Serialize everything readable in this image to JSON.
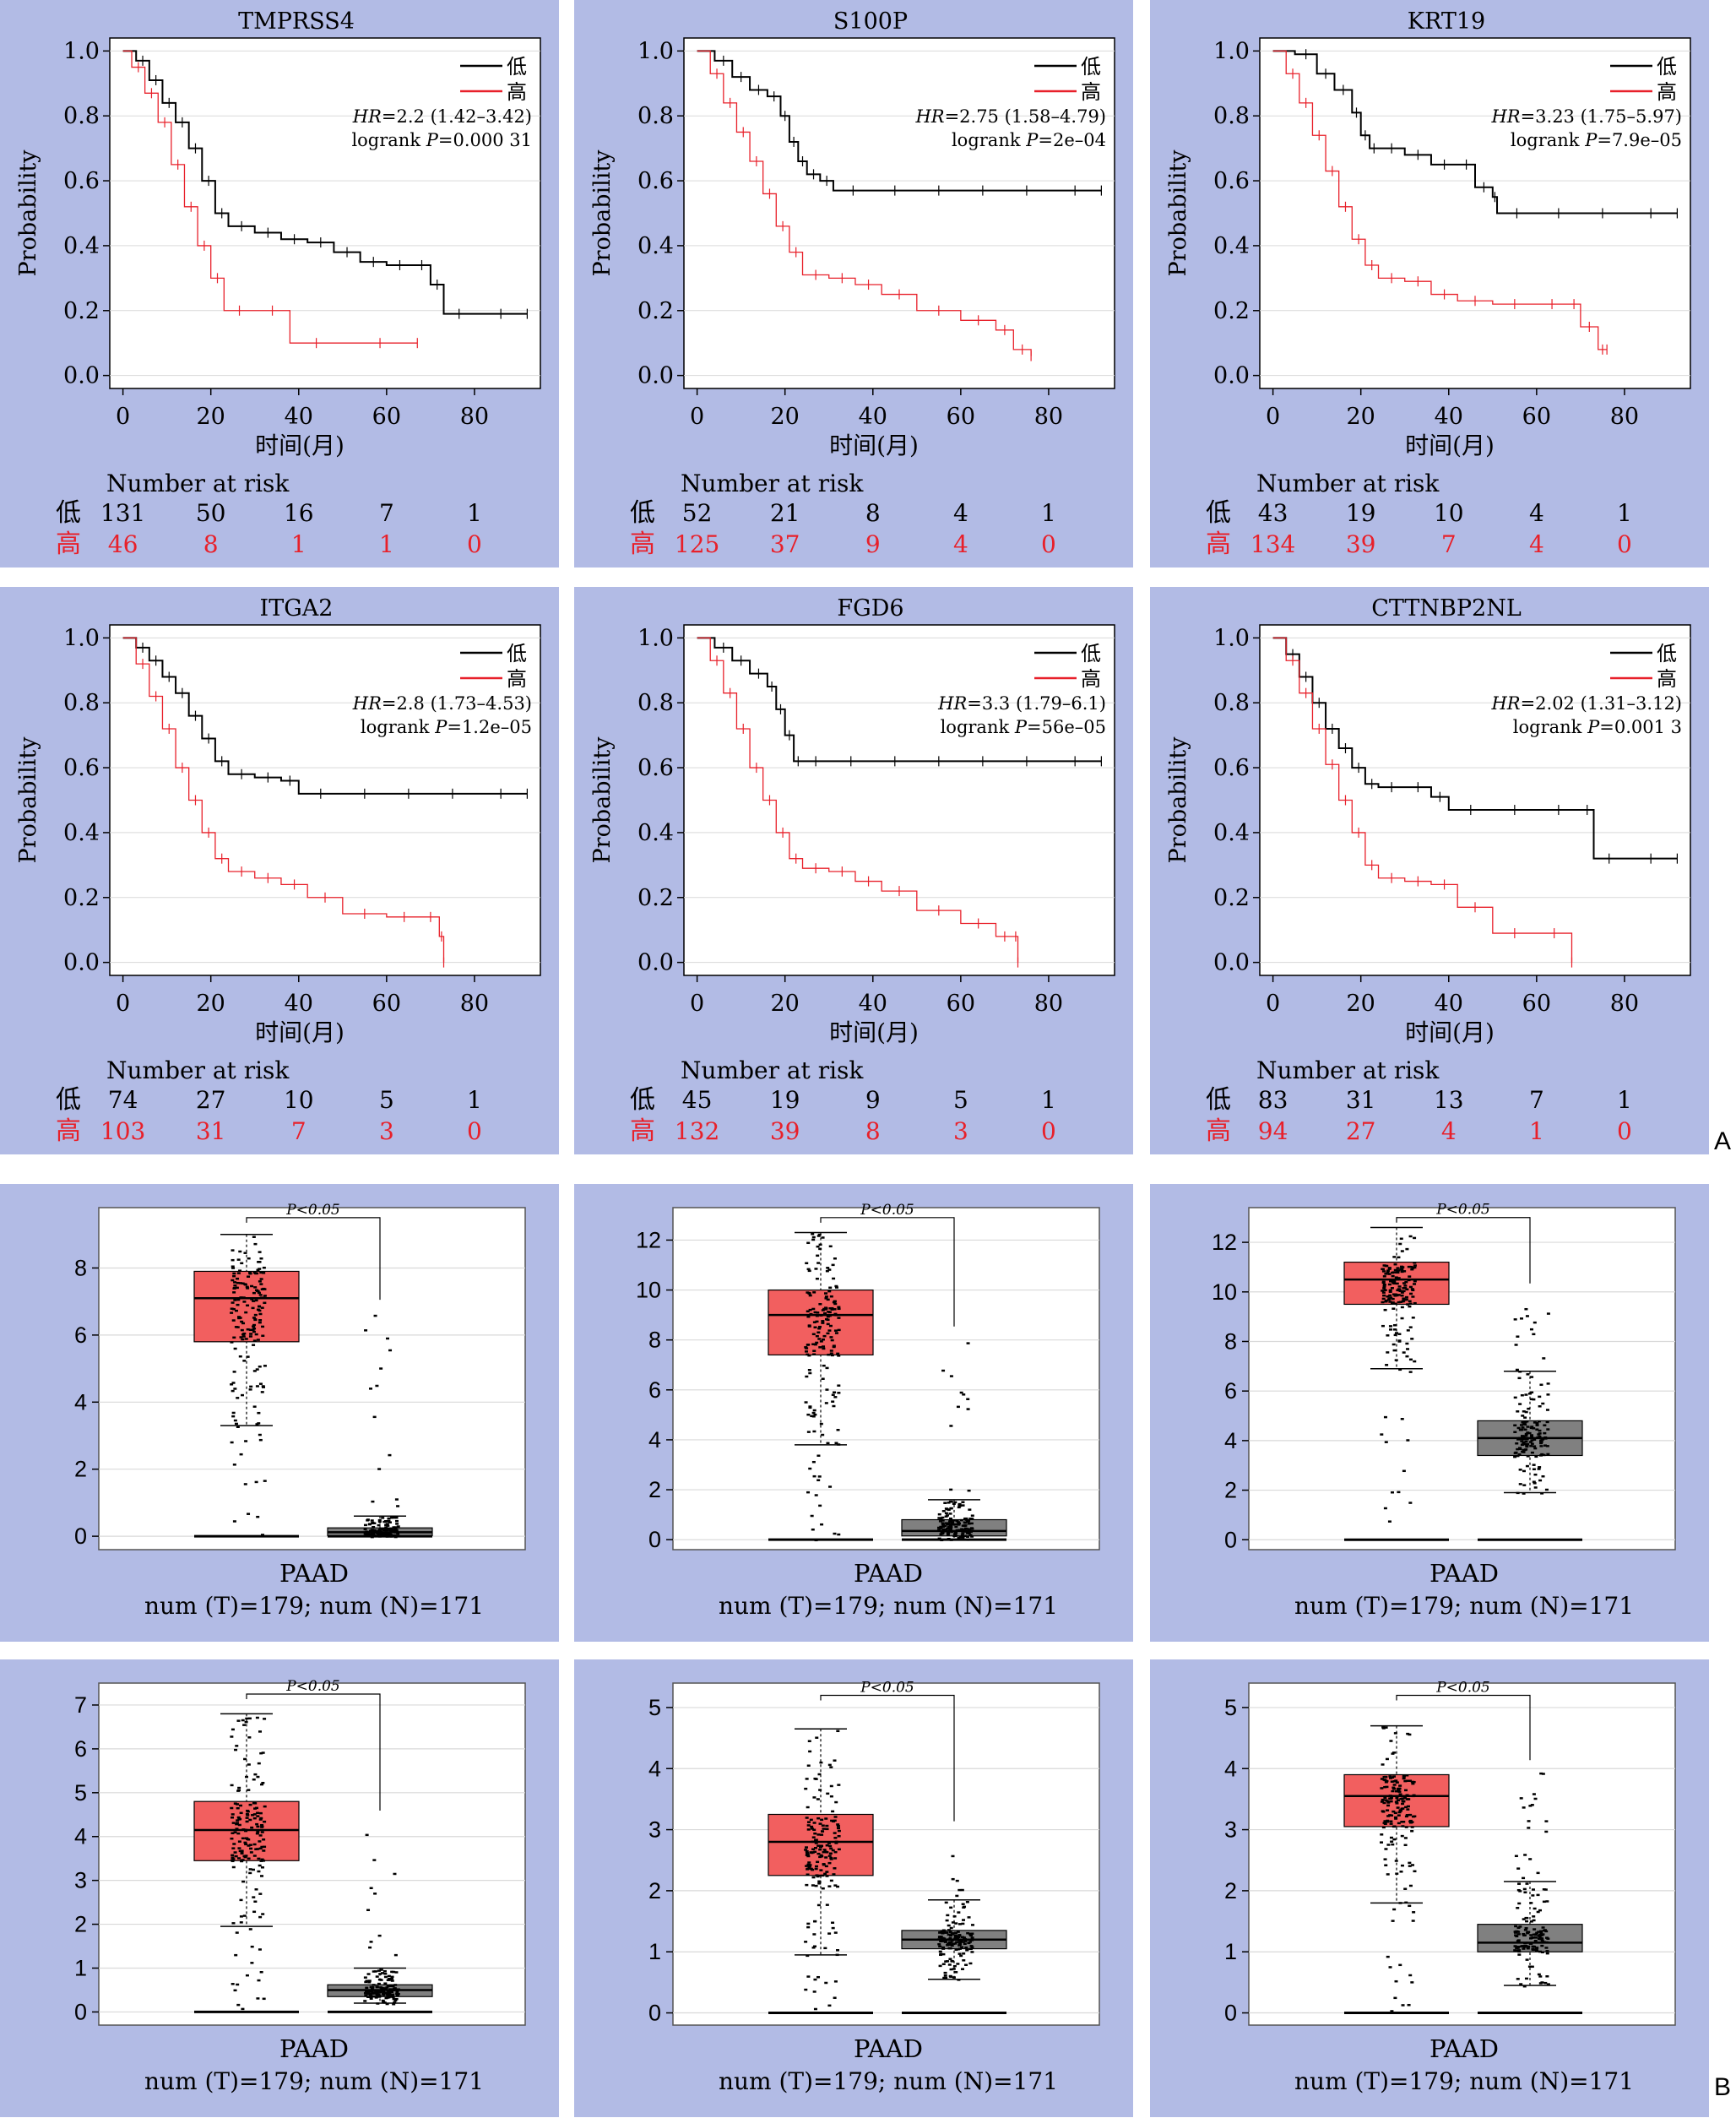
{
  "figure_letters": [
    "A",
    "B"
  ],
  "colors": {
    "panel_bg": "#b2bbe5",
    "low": "#000000",
    "high": "#e8202a",
    "tumor_box": "#f25f5f",
    "normal_box": "#808080",
    "grid": "#d9d9d9"
  },
  "km_common": {
    "ylabel": "Probability",
    "xlabel": "时间(月)",
    "risk_title": "Number at risk",
    "legend_low": "低",
    "legend_high": "高",
    "yticks": [
      "0.0",
      "0.2",
      "0.4",
      "0.6",
      "0.8",
      "1.0"
    ],
    "xticks": [
      "0",
      "20",
      "40",
      "60",
      "80"
    ],
    "hr_prefix": "HR",
    "logrank_prefix": "logrank P"
  },
  "box_common": {
    "xlabel": "PAAD",
    "counts": "num (T)=179; num (N)=171",
    "sig": "P<0.05"
  },
  "chart_data": [
    {
      "type": "line",
      "title": "TMPRSS4",
      "hr": "=2.2 (1.42–3.42)",
      "p": "=0.000 31",
      "xlim": [
        -3,
        95
      ],
      "ylim": [
        -0.04,
        1.04
      ],
      "series": [
        {
          "name": "低",
          "x": [
            0,
            3,
            6,
            9,
            12,
            15,
            18,
            21,
            24,
            30,
            36,
            42,
            48,
            54,
            60,
            66,
            70,
            73,
            80,
            92
          ],
          "y": [
            1.0,
            0.97,
            0.91,
            0.84,
            0.78,
            0.7,
            0.6,
            0.5,
            0.46,
            0.44,
            0.42,
            0.41,
            0.38,
            0.35,
            0.34,
            0.34,
            0.28,
            0.19,
            0.19,
            0.19
          ]
        },
        {
          "name": "高",
          "x": [
            0,
            2,
            5,
            8,
            11,
            14,
            17,
            20,
            23,
            30,
            38,
            50,
            67
          ],
          "y": [
            1.0,
            0.95,
            0.87,
            0.78,
            0.65,
            0.52,
            0.4,
            0.3,
            0.2,
            0.2,
            0.1,
            0.1,
            0.1
          ]
        }
      ],
      "risk_low": [
        "131",
        "50",
        "16",
        "7",
        "1"
      ],
      "risk_high": [
        "46",
        "8",
        "1",
        "1",
        "0"
      ]
    },
    {
      "type": "line",
      "title": "S100P",
      "hr": "=2.75 (1.58–4.79)",
      "p": "=2e–04",
      "xlim": [
        -3,
        95
      ],
      "ylim": [
        -0.04,
        1.04
      ],
      "series": [
        {
          "name": "低",
          "x": [
            0,
            4,
            8,
            12,
            16,
            19,
            21,
            23,
            25,
            28,
            31,
            40,
            50,
            60,
            70,
            80,
            92
          ],
          "y": [
            1.0,
            0.97,
            0.92,
            0.88,
            0.86,
            0.8,
            0.72,
            0.66,
            0.62,
            0.6,
            0.57,
            0.57,
            0.57,
            0.57,
            0.57,
            0.57,
            0.57
          ]
        },
        {
          "name": "高",
          "x": [
            0,
            3,
            6,
            9,
            12,
            15,
            18,
            21,
            24,
            30,
            36,
            42,
            50,
            60,
            68,
            72,
            76
          ],
          "y": [
            1.0,
            0.93,
            0.84,
            0.75,
            0.66,
            0.56,
            0.46,
            0.38,
            0.31,
            0.3,
            0.28,
            0.25,
            0.2,
            0.17,
            0.14,
            0.08,
            0.06
          ]
        }
      ],
      "risk_low": [
        "52",
        "21",
        "8",
        "4",
        "1"
      ],
      "risk_high": [
        "125",
        "37",
        "9",
        "4",
        "0"
      ]
    },
    {
      "type": "line",
      "title": "KRT19",
      "hr": "=3.23 (1.75–5.97)",
      "p": "=7.9e–05",
      "xlim": [
        -3,
        95
      ],
      "ylim": [
        -0.04,
        1.04
      ],
      "series": [
        {
          "name": "低",
          "x": [
            0,
            5,
            10,
            14,
            18,
            20,
            22,
            24,
            30,
            36,
            42,
            46,
            50,
            51,
            60,
            70,
            80,
            92
          ],
          "y": [
            1.0,
            0.99,
            0.93,
            0.88,
            0.81,
            0.74,
            0.7,
            0.7,
            0.68,
            0.65,
            0.65,
            0.58,
            0.55,
            0.5,
            0.5,
            0.5,
            0.5,
            0.5
          ]
        },
        {
          "name": "高",
          "x": [
            0,
            3,
            6,
            9,
            12,
            15,
            18,
            21,
            24,
            30,
            36,
            42,
            50,
            60,
            67,
            70,
            74,
            76
          ],
          "y": [
            1.0,
            0.93,
            0.84,
            0.74,
            0.63,
            0.52,
            0.42,
            0.34,
            0.3,
            0.29,
            0.25,
            0.23,
            0.22,
            0.22,
            0.22,
            0.15,
            0.08,
            0.08
          ]
        }
      ],
      "risk_low": [
        "43",
        "19",
        "10",
        "4",
        "1"
      ],
      "risk_high": [
        "134",
        "39",
        "7",
        "4",
        "0"
      ]
    },
    {
      "type": "line",
      "title": "ITGA2",
      "hr": "=2.8 (1.73–4.53)",
      "p": "=1.2e–05",
      "xlim": [
        -3,
        95
      ],
      "ylim": [
        -0.04,
        1.04
      ],
      "series": [
        {
          "name": "低",
          "x": [
            0,
            3,
            6,
            9,
            12,
            15,
            18,
            21,
            24,
            30,
            36,
            40,
            50,
            60,
            70,
            80,
            92
          ],
          "y": [
            1.0,
            0.97,
            0.93,
            0.88,
            0.83,
            0.76,
            0.69,
            0.62,
            0.58,
            0.57,
            0.56,
            0.52,
            0.52,
            0.52,
            0.52,
            0.52,
            0.52
          ]
        },
        {
          "name": "高",
          "x": [
            0,
            3,
            6,
            9,
            12,
            15,
            18,
            21,
            24,
            30,
            36,
            42,
            50,
            60,
            68,
            72,
            73
          ],
          "y": [
            1.0,
            0.92,
            0.82,
            0.72,
            0.6,
            0.5,
            0.4,
            0.32,
            0.28,
            0.26,
            0.24,
            0.2,
            0.15,
            0.14,
            0.14,
            0.08,
            0.0
          ]
        }
      ],
      "risk_low": [
        "74",
        "27",
        "10",
        "5",
        "1"
      ],
      "risk_high": [
        "103",
        "31",
        "7",
        "3",
        "0"
      ]
    },
    {
      "type": "line",
      "title": "FGD6",
      "hr": "=3.3 (1.79–6.1)",
      "p": "=56e–05",
      "xlim": [
        -3,
        95
      ],
      "ylim": [
        -0.04,
        1.04
      ],
      "series": [
        {
          "name": "低",
          "x": [
            0,
            4,
            8,
            12,
            16,
            18,
            20,
            22,
            24,
            30,
            40,
            50,
            60,
            70,
            80,
            92
          ],
          "y": [
            1.0,
            0.97,
            0.93,
            0.89,
            0.85,
            0.78,
            0.7,
            0.62,
            0.62,
            0.62,
            0.62,
            0.62,
            0.62,
            0.62,
            0.62,
            0.62
          ]
        },
        {
          "name": "高",
          "x": [
            0,
            3,
            6,
            9,
            12,
            15,
            18,
            21,
            24,
            30,
            36,
            42,
            50,
            60,
            68,
            72,
            73
          ],
          "y": [
            1.0,
            0.93,
            0.83,
            0.72,
            0.6,
            0.5,
            0.4,
            0.32,
            0.29,
            0.28,
            0.25,
            0.22,
            0.16,
            0.12,
            0.08,
            0.08,
            0.0
          ]
        }
      ],
      "risk_low": [
        "45",
        "19",
        "9",
        "5",
        "1"
      ],
      "risk_high": [
        "132",
        "39",
        "8",
        "3",
        "0"
      ]
    },
    {
      "type": "line",
      "title": "CTTNBP2NL",
      "hr": "=2.02 (1.31–3.12)",
      "p": "=0.001 3",
      "xlim": [
        -3,
        95
      ],
      "ylim": [
        -0.04,
        1.04
      ],
      "series": [
        {
          "name": "低",
          "x": [
            0,
            3,
            6,
            9,
            12,
            15,
            18,
            21,
            24,
            30,
            36,
            40,
            50,
            60,
            70,
            73,
            80,
            92
          ],
          "y": [
            1.0,
            0.95,
            0.88,
            0.8,
            0.72,
            0.66,
            0.6,
            0.55,
            0.54,
            0.54,
            0.51,
            0.47,
            0.47,
            0.47,
            0.47,
            0.32,
            0.32,
            0.32
          ]
        },
        {
          "name": "高",
          "x": [
            0,
            3,
            6,
            9,
            12,
            15,
            18,
            21,
            24,
            30,
            36,
            42,
            50,
            60,
            68
          ],
          "y": [
            1.0,
            0.93,
            0.83,
            0.72,
            0.61,
            0.5,
            0.4,
            0.3,
            0.26,
            0.25,
            0.24,
            0.17,
            0.09,
            0.09,
            0.0
          ]
        }
      ],
      "risk_low": [
        "83",
        "31",
        "13",
        "7",
        "1"
      ],
      "risk_high": [
        "94",
        "27",
        "4",
        "1",
        "0"
      ]
    },
    {
      "type": "box",
      "ylim": [
        -0.4,
        9.8
      ],
      "yticks": [
        0,
        2,
        4,
        6,
        8
      ],
      "tumor": {
        "min": 3.3,
        "q1": 5.8,
        "median": 7.1,
        "q3": 7.9,
        "max": 9.0
      },
      "normal": {
        "min": 0.0,
        "q1": 0.02,
        "median": 0.12,
        "q3": 0.25,
        "max": 0.6
      },
      "bracket_y": 9.5,
      "normal_top": 6.8
    },
    {
      "type": "box",
      "ylim": [
        -0.4,
        13.3
      ],
      "yticks": [
        0,
        2,
        4,
        6,
        8,
        10,
        12
      ],
      "tumor": {
        "min": 3.8,
        "q1": 7.4,
        "median": 9.0,
        "q3": 10.0,
        "max": 12.3
      },
      "normal": {
        "min": 0.0,
        "q1": 0.15,
        "median": 0.35,
        "q3": 0.8,
        "max": 1.6
      },
      "bracket_y": 12.9,
      "normal_top": 8.2
    },
    {
      "type": "box",
      "ylim": [
        -0.4,
        13.4
      ],
      "yticks": [
        0,
        2,
        4,
        6,
        8,
        10,
        12
      ],
      "tumor": {
        "min": 6.9,
        "q1": 9.5,
        "median": 10.5,
        "q3": 11.2,
        "max": 12.6
      },
      "normal": {
        "min": 1.9,
        "q1": 3.4,
        "median": 4.1,
        "q3": 4.8,
        "max": 6.8
      },
      "bracket_y": 13.0,
      "normal_top": 10.0
    },
    {
      "type": "box",
      "ylim": [
        -0.3,
        7.5
      ],
      "yticks": [
        0,
        1,
        2,
        3,
        4,
        5,
        6,
        7
      ],
      "tumor": {
        "min": 1.95,
        "q1": 3.45,
        "median": 4.15,
        "q3": 4.8,
        "max": 6.8
      },
      "normal": {
        "min": 0.2,
        "q1": 0.35,
        "median": 0.5,
        "q3": 0.62,
        "max": 1.0
      },
      "bracket_y": 7.25,
      "normal_top": 4.4
    },
    {
      "type": "box",
      "ylim": [
        -0.2,
        5.4
      ],
      "yticks": [
        0,
        1,
        2,
        3,
        4,
        5
      ],
      "tumor": {
        "min": 0.95,
        "q1": 2.25,
        "median": 2.8,
        "q3": 3.25,
        "max": 4.65
      },
      "normal": {
        "min": 0.55,
        "q1": 1.05,
        "median": 1.2,
        "q3": 1.35,
        "max": 1.85
      },
      "bracket_y": 5.2,
      "normal_top": 3.0
    },
    {
      "type": "box",
      "ylim": [
        -0.2,
        5.4
      ],
      "yticks": [
        0,
        1,
        2,
        3,
        4,
        5
      ],
      "tumor": {
        "min": 1.8,
        "q1": 3.05,
        "median": 3.55,
        "q3": 3.9,
        "max": 4.7
      },
      "normal": {
        "min": 0.45,
        "q1": 1.0,
        "median": 1.15,
        "q3": 1.45,
        "max": 2.15
      },
      "bracket_y": 5.2,
      "normal_top": 4.0
    }
  ]
}
